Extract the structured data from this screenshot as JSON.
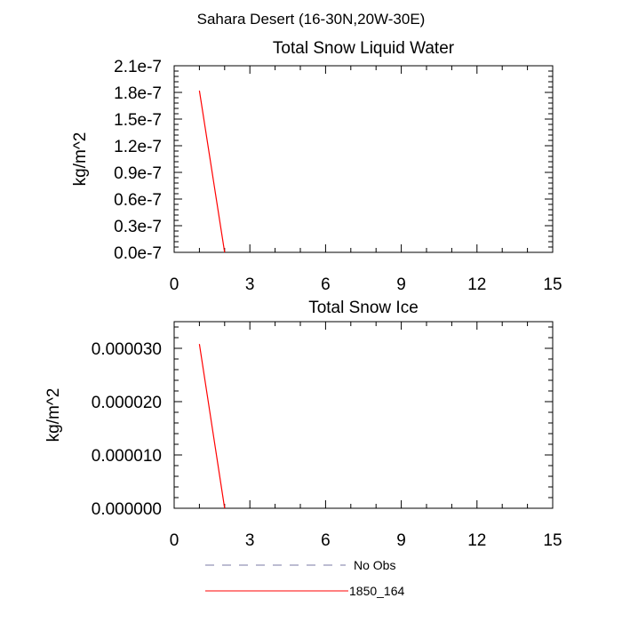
{
  "figure": {
    "title": "Sahara Desert (16-30N,20W-30E)"
  },
  "legend": {
    "items": [
      {
        "label": "No Obs",
        "color": "#7a7aa6",
        "style": "dashed"
      },
      {
        "label": "1850_164",
        "color": "#ff0000",
        "style": "solid"
      }
    ]
  },
  "chart_data": [
    {
      "type": "line",
      "title": "Total Snow Liquid Water",
      "xlabel": "",
      "ylabel": "kg/m^2",
      "xlim": [
        0,
        15
      ],
      "ylim": [
        0,
        2.1e-07
      ],
      "xticks": [
        0,
        3,
        6,
        9,
        12,
        15
      ],
      "xtick_labels": [
        "0",
        "3",
        "6",
        "9",
        "12",
        "15"
      ],
      "yticks": [
        0,
        3e-08,
        6e-08,
        9e-08,
        1.2e-07,
        1.5e-07,
        1.8e-07,
        2.1e-07
      ],
      "ytick_labels": [
        "0.0e-7",
        "0.3e-7",
        "0.6e-7",
        "0.9e-7",
        "1.2e-7",
        "1.5e-7",
        "1.8e-7",
        "2.1e-7"
      ],
      "grid": false,
      "series": [
        {
          "name": "1850_164",
          "color": "#ff0000",
          "x": [
            1,
            2
          ],
          "y": [
            1.82e-07,
            0
          ]
        }
      ]
    },
    {
      "type": "line",
      "title": "Total Snow Ice",
      "xlabel": "",
      "ylabel": "kg/m^2",
      "xlim": [
        0,
        15
      ],
      "ylim": [
        0,
        3.5e-05
      ],
      "xticks": [
        0,
        3,
        6,
        9,
        12,
        15
      ],
      "xtick_labels": [
        "0",
        "3",
        "6",
        "9",
        "12",
        "15"
      ],
      "yticks": [
        0,
        1e-05,
        2e-05,
        3e-05
      ],
      "ytick_labels": [
        "0.000000",
        "0.000010",
        "0.000020",
        "0.000030"
      ],
      "grid": false,
      "series": [
        {
          "name": "1850_164",
          "color": "#ff0000",
          "x": [
            1,
            2
          ],
          "y": [
            3.08e-05,
            0
          ]
        }
      ]
    }
  ]
}
